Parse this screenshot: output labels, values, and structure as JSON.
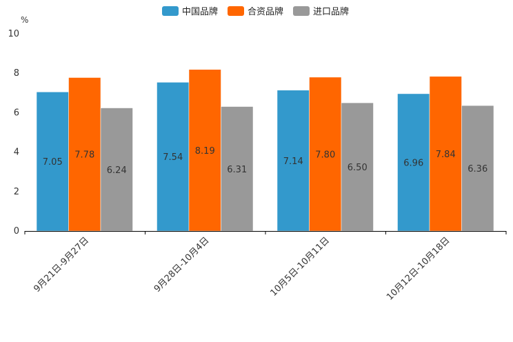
{
  "chart_data": {
    "type": "bar",
    "title": "",
    "ylabel": "%",
    "xlabel": "",
    "ylim": [
      0,
      10
    ],
    "yticks": [
      0,
      2,
      4,
      6,
      8,
      10
    ],
    "categories": [
      "9月21日-9月27日",
      "9月28日-10月4日",
      "10月5日-10月11日",
      "10月12日-10月18日"
    ],
    "series": [
      {
        "name": "中国品牌",
        "color": "#3399cc",
        "values": [
          7.05,
          7.54,
          7.14,
          6.96
        ]
      },
      {
        "name": "合资品牌",
        "color": "#ff6600",
        "values": [
          7.78,
          8.19,
          7.8,
          7.84
        ]
      },
      {
        "name": "进口品牌",
        "color": "#999999",
        "values": [
          6.24,
          6.31,
          6.5,
          6.36
        ]
      }
    ],
    "legend_position": "top-center",
    "grid": false
  }
}
